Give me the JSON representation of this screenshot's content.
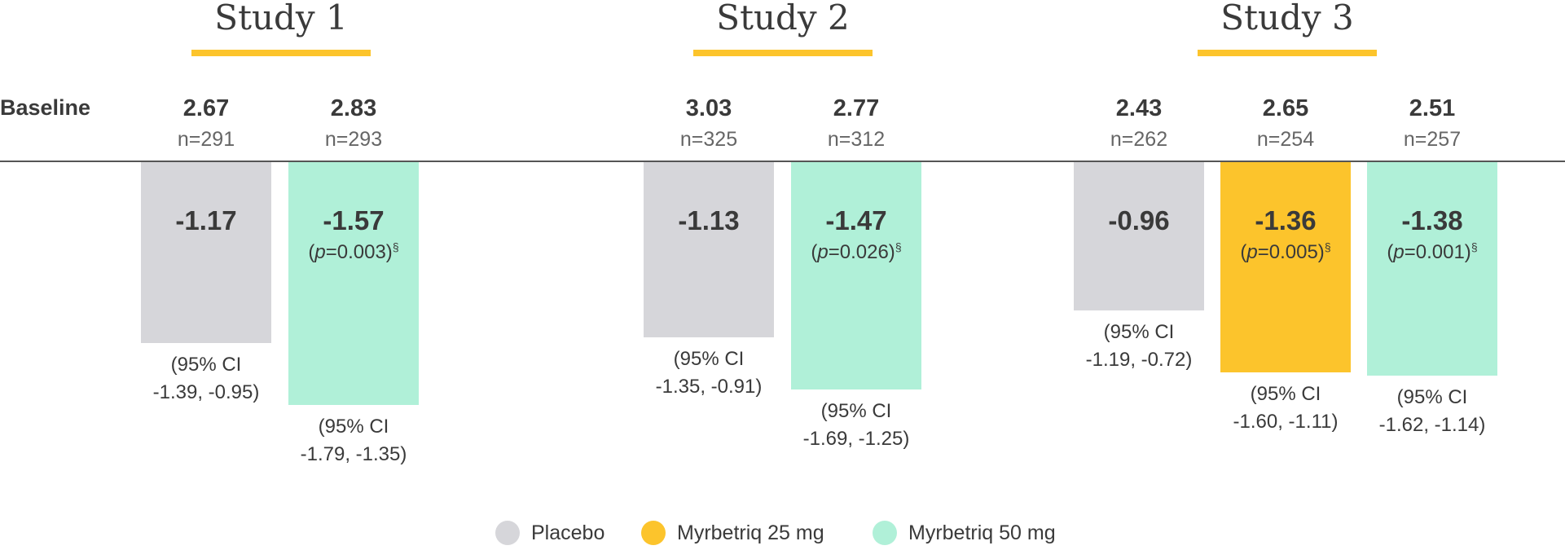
{
  "chart_data": {
    "type": "bar",
    "orientation": "downward",
    "baseline_label": "Baseline",
    "series_legend": [
      {
        "name": "Placebo",
        "color": "#d6d6da"
      },
      {
        "name": "Myrbetriq 25 mg",
        "color": "#fcc42c"
      },
      {
        "name": "Myrbetriq 50 mg",
        "color": "#b0f0d8"
      }
    ],
    "studies": [
      {
        "title": "Study 1",
        "bars": [
          {
            "series": "Placebo",
            "baseline": "2.67",
            "n": "n=291",
            "value": -1.17,
            "value_label": "-1.17",
            "p": "",
            "ci_line1": "(95% CI",
            "ci_line2": "-1.39, -0.95)"
          },
          {
            "series": "Myrbetriq 50 mg",
            "baseline": "2.83",
            "n": "n=293",
            "value": -1.57,
            "value_label": "-1.57",
            "p": "=0.003)",
            "ci_line1": "(95% CI",
            "ci_line2": "-1.79, -1.35)"
          }
        ]
      },
      {
        "title": "Study 2",
        "bars": [
          {
            "series": "Placebo",
            "baseline": "3.03",
            "n": "n=325",
            "value": -1.13,
            "value_label": "-1.13",
            "p": "",
            "ci_line1": "(95% CI",
            "ci_line2": "-1.35, -0.91)"
          },
          {
            "series": "Myrbetriq 50 mg",
            "baseline": "2.77",
            "n": "n=312",
            "value": -1.47,
            "value_label": "-1.47",
            "p": "=0.026)",
            "ci_line1": "(95% CI",
            "ci_line2": "-1.69, -1.25)"
          }
        ]
      },
      {
        "title": "Study 3",
        "bars": [
          {
            "series": "Placebo",
            "baseline": "2.43",
            "n": "n=262",
            "value": -0.96,
            "value_label": "-0.96",
            "p": "",
            "ci_line1": "(95% CI",
            "ci_line2": "-1.19, -0.72)"
          },
          {
            "series": "Myrbetriq 25 mg",
            "baseline": "2.65",
            "n": "n=254",
            "value": -1.36,
            "value_label": "-1.36",
            "p": "=0.005)",
            "ci_line1": "(95% CI",
            "ci_line2": "-1.60, -1.11)"
          },
          {
            "series": "Myrbetriq 50 mg",
            "baseline": "2.51",
            "n": "n=257",
            "value": -1.38,
            "value_label": "-1.38",
            "p": "=0.001)",
            "ci_line1": "(95% CI",
            "ci_line2": "-1.62, -1.14)"
          }
        ]
      }
    ],
    "p_prefix": "(",
    "p_symbol": "p",
    "p_footnote": "§",
    "colors": {
      "accent": "#fcc42c",
      "placebo": "#d6d6da",
      "myrbetriq_25": "#fcc42c",
      "myrbetriq_50": "#b0f0d8",
      "text": "#3a3a3a"
    }
  }
}
